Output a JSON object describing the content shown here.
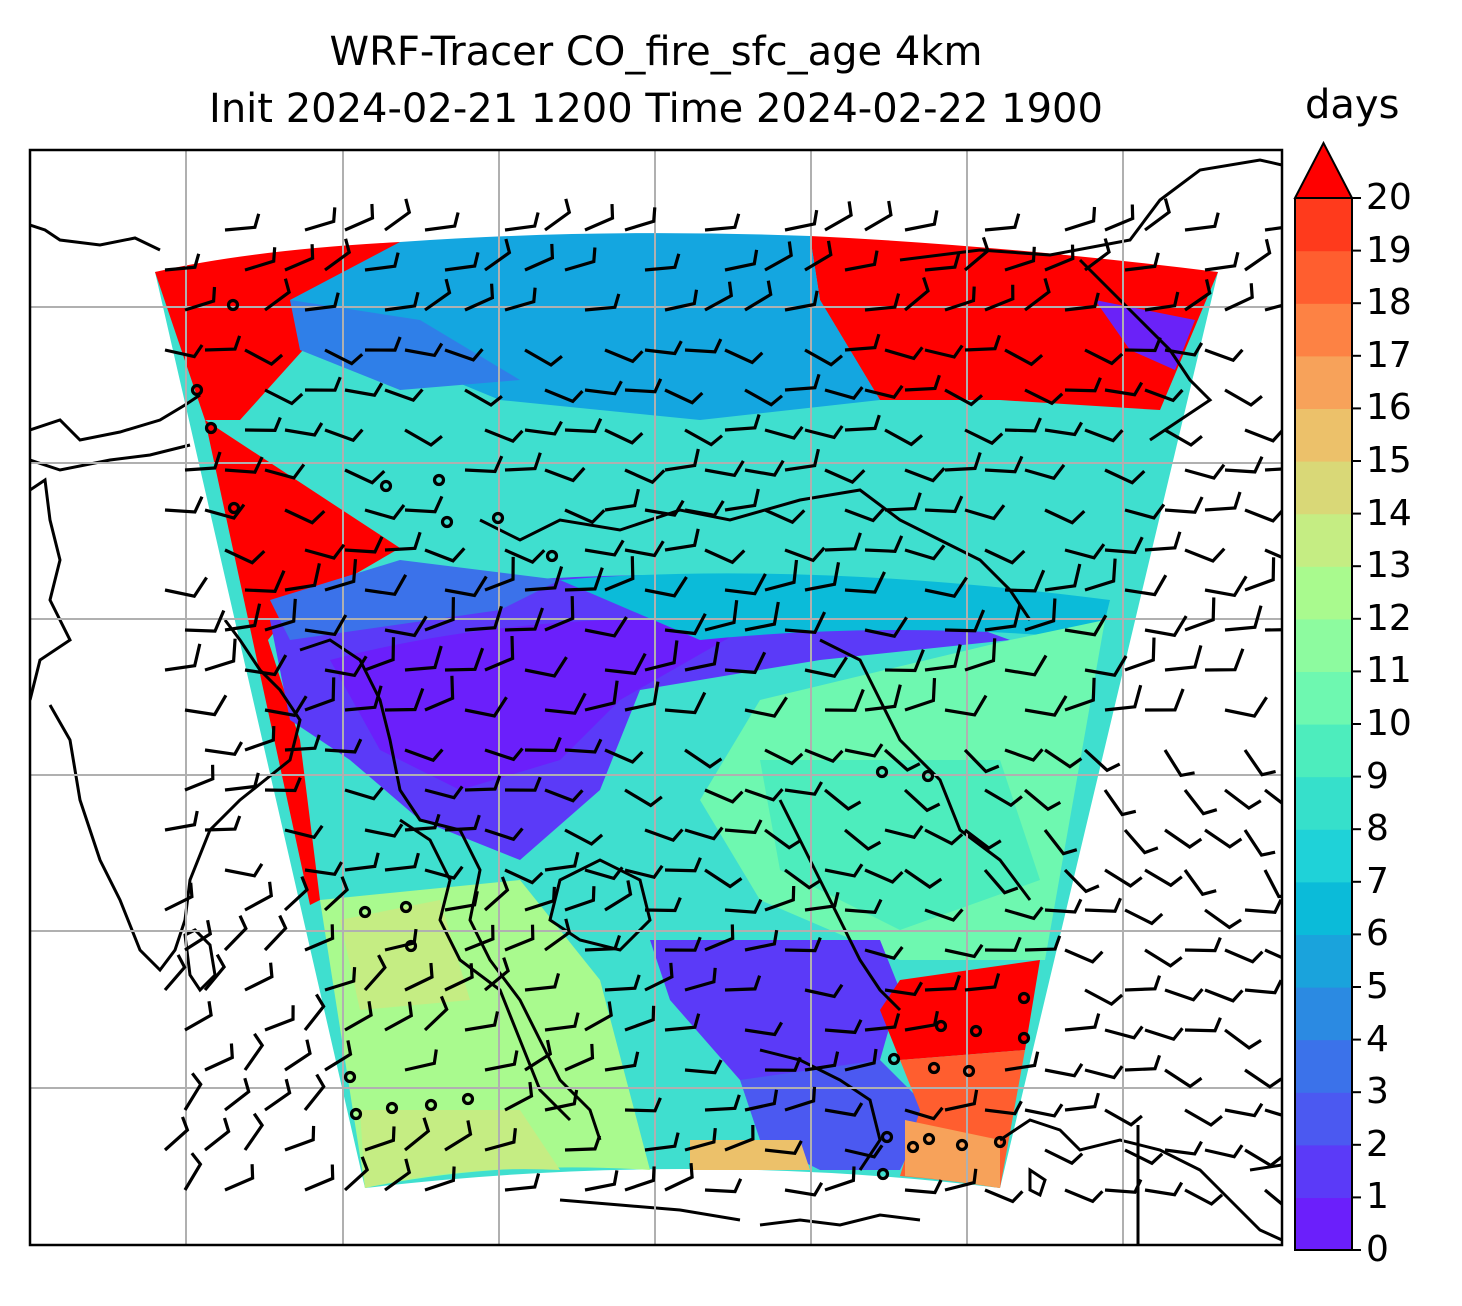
{
  "title": {
    "line1": "WRF-Tracer CO_fire_sfc_age 4km",
    "line2": "Init 2024-02-21 1200 Time 2024-02-22 1900"
  },
  "colorbar": {
    "unit": "days",
    "ticks": [
      "0",
      "1",
      "2",
      "3",
      "4",
      "5",
      "6",
      "7",
      "8",
      "9",
      "10",
      "11",
      "12",
      "13",
      "14",
      "15",
      "16",
      "17",
      "18",
      "19",
      "20"
    ],
    "extend": "max",
    "colors": [
      "#6b1ffb",
      "#5b3af8",
      "#4b59f1",
      "#3b72ea",
      "#2b8ae2",
      "#1aa3dc",
      "#0bbbd9",
      "#1fd2d8",
      "#36e0cb",
      "#4dedbd",
      "#6ef8b0",
      "#8dfb9f",
      "#a9fa8e",
      "#c5ed83",
      "#d9d877",
      "#ecc16a",
      "#f7a25a",
      "#fd8244",
      "#ff5e2f",
      "#ff3a1c",
      "#ff1409"
    ],
    "extend_color": "#ff0000"
  },
  "map": {
    "field": "CO_fire_sfc_age",
    "gridlines": true,
    "coastlines": true,
    "wind_barbs": true
  }
}
